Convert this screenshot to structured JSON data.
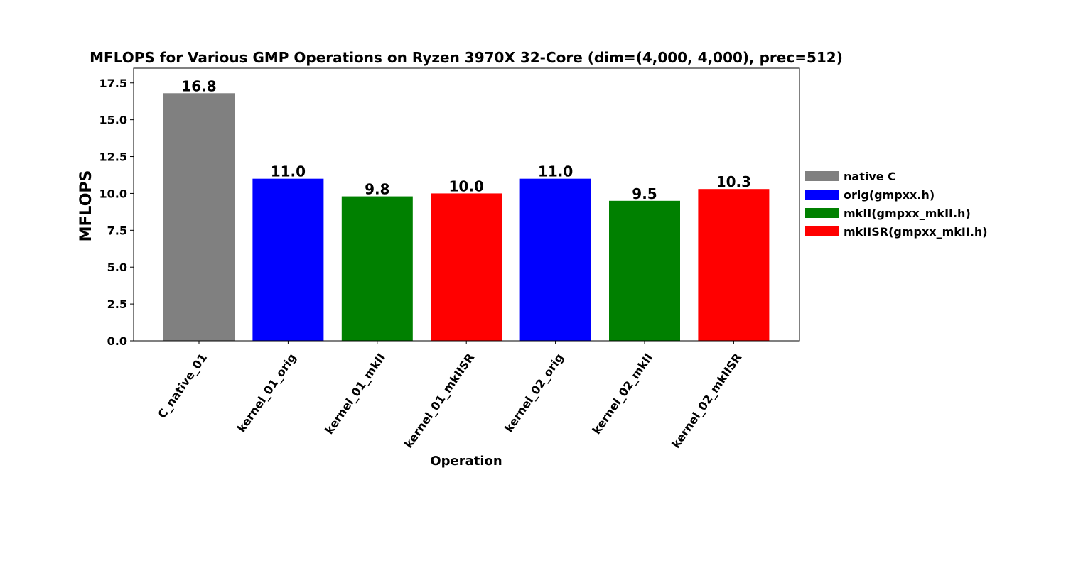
{
  "chart_data": {
    "type": "bar",
    "title": "MFLOPS for Various GMP Operations on Ryzen 3970X 32-Core (dim=(4,000, 4,000), prec=512)",
    "xlabel": "Operation",
    "ylabel": "MFLOPS",
    "ylim": [
      0,
      18.5
    ],
    "yticks": [
      "0.0",
      "2.5",
      "5.0",
      "7.5",
      "10.0",
      "12.5",
      "15.0",
      "17.5"
    ],
    "grid": false,
    "legend_position": "right",
    "categories": [
      "C_native_01",
      "kernel_01_orig",
      "kernel_01_mkII",
      "kernel_01_mkIISR",
      "kernel_02_orig",
      "kernel_02_mkII",
      "kernel_02_mkIISR"
    ],
    "values": [
      16.8,
      11.0,
      9.8,
      10.0,
      11.0,
      9.5,
      10.3
    ],
    "value_labels": [
      "16.8",
      "11.0",
      "9.8",
      "10.0",
      "11.0",
      "9.5",
      "10.3"
    ],
    "bar_series": [
      0,
      1,
      2,
      3,
      1,
      2,
      3
    ],
    "series": [
      {
        "name": "native C",
        "color": "#808080"
      },
      {
        "name": "orig(gmpxx.h)",
        "color": "#0000ff"
      },
      {
        "name": "mkII(gmpxx_mkII.h)",
        "color": "#008000"
      },
      {
        "name": "mkIISR(gmpxx_mkII.h)",
        "color": "#ff0000"
      }
    ]
  }
}
